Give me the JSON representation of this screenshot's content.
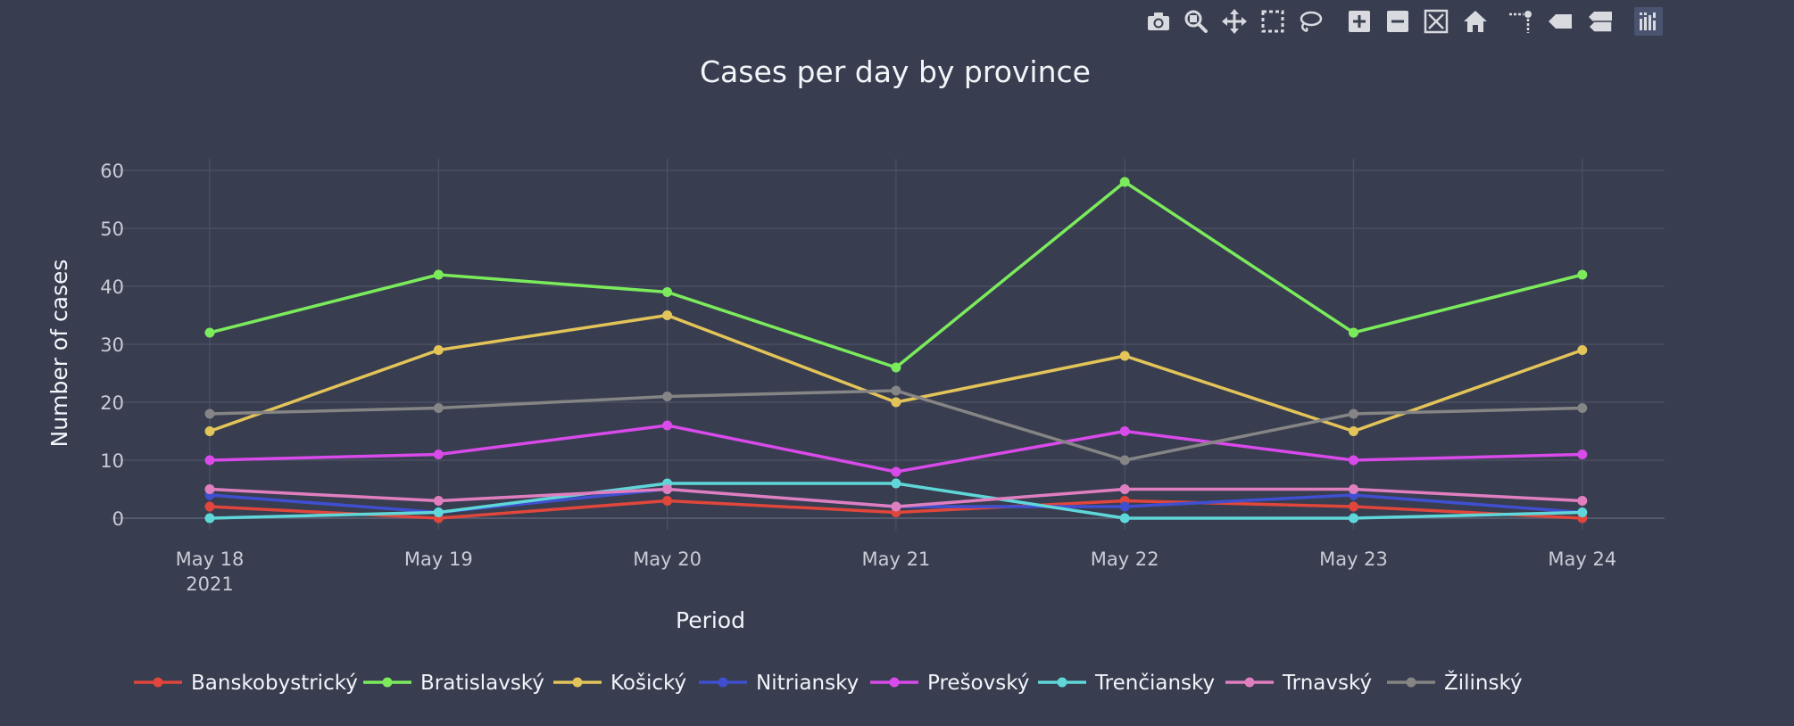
{
  "toolbar": {
    "buttons": [
      {
        "name": "camera-icon",
        "tooltip": "Download plot as a png"
      },
      {
        "name": "zoom-icon",
        "tooltip": "Zoom"
      },
      {
        "name": "pan-icon",
        "tooltip": "Pan"
      },
      {
        "name": "box-select-icon",
        "tooltip": "Box Select"
      },
      {
        "name": "lasso-select-icon",
        "tooltip": "Lasso Select"
      },
      {
        "name": "zoom-in-icon",
        "tooltip": "Zoom in"
      },
      {
        "name": "zoom-out-icon",
        "tooltip": "Zoom out"
      },
      {
        "name": "autoscale-icon",
        "tooltip": "Autoscale"
      },
      {
        "name": "home-icon",
        "tooltip": "Reset axes"
      },
      {
        "name": "spike-lines-icon",
        "tooltip": "Toggle Spike Lines"
      },
      {
        "name": "hover-closest-icon",
        "tooltip": "Show closest data on hover"
      },
      {
        "name": "hover-compare-icon",
        "tooltip": "Compare data on hover"
      },
      {
        "name": "plotly-logo-icon",
        "tooltip": "Produced with Plotly"
      }
    ]
  },
  "chart_data": {
    "type": "line",
    "title": "Cases per day by province",
    "xlabel": "Period",
    "ylabel": "Number of cases",
    "categories": [
      "May 18",
      "May 19",
      "May 20",
      "May 21",
      "May 22",
      "May 23",
      "May 24"
    ],
    "year_label": "2021",
    "ylim": [
      -2,
      62
    ],
    "yticks": [
      0,
      10,
      20,
      30,
      40,
      50,
      60
    ],
    "grid": true,
    "legend_position": "bottom",
    "series": [
      {
        "name": "Banskobystrický",
        "color": "#e0463b",
        "values": [
          2,
          0,
          3,
          1,
          3,
          2,
          0
        ]
      },
      {
        "name": "Bratislavský",
        "color": "#7beb5c",
        "values": [
          32,
          42,
          39,
          26,
          58,
          32,
          42
        ]
      },
      {
        "name": "Košický",
        "color": "#e3c459",
        "values": [
          15,
          29,
          35,
          20,
          28,
          15,
          29
        ]
      },
      {
        "name": "Nitriansky",
        "color": "#3f4fcf",
        "values": [
          4,
          1,
          5,
          2,
          2,
          4,
          1
        ]
      },
      {
        "name": "Prešovský",
        "color": "#d84ae9",
        "values": [
          10,
          11,
          16,
          8,
          15,
          10,
          11
        ]
      },
      {
        "name": "Trenčiansky",
        "color": "#5fd7d9",
        "values": [
          0,
          1,
          6,
          6,
          0,
          0,
          1
        ]
      },
      {
        "name": "Trnavský",
        "color": "#e07fc0",
        "values": [
          5,
          3,
          5,
          2,
          5,
          5,
          3
        ]
      },
      {
        "name": "Žilinský",
        "color": "#858585",
        "values": [
          18,
          19,
          21,
          22,
          10,
          18,
          19
        ]
      }
    ]
  }
}
